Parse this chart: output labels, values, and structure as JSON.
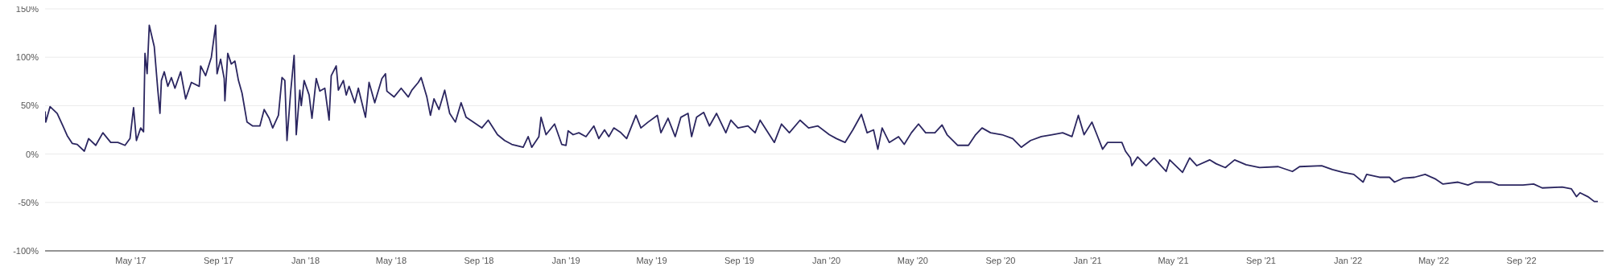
{
  "chart_data": {
    "type": "line",
    "color": "#2b2660",
    "grid": "y",
    "marker": "none",
    "line_style": "solid",
    "xlim": [
      "2017-01-01",
      "2022-12-25"
    ],
    "xticks": [
      {
        "value": "2017-05-01",
        "label": "May '17"
      },
      {
        "value": "2017-09-01",
        "label": "Sep '17"
      },
      {
        "value": "2018-01-01",
        "label": "Jan '18"
      },
      {
        "value": "2018-05-01",
        "label": "May '18"
      },
      {
        "value": "2018-09-01",
        "label": "Sep '18"
      },
      {
        "value": "2019-01-01",
        "label": "Jan '19"
      },
      {
        "value": "2019-05-01",
        "label": "May '19"
      },
      {
        "value": "2019-09-01",
        "label": "Sep '19"
      },
      {
        "value": "2020-01-01",
        "label": "Jan '20"
      },
      {
        "value": "2020-05-01",
        "label": "May '20"
      },
      {
        "value": "2020-09-01",
        "label": "Sep '20"
      },
      {
        "value": "2021-01-01",
        "label": "Jan '21"
      },
      {
        "value": "2021-05-01",
        "label": "May '21"
      },
      {
        "value": "2021-09-01",
        "label": "Sep '21"
      },
      {
        "value": "2022-01-01",
        "label": "Jan '22"
      },
      {
        "value": "2022-05-01",
        "label": "May '22"
      },
      {
        "value": "2022-09-01",
        "label": "Sep '22"
      }
    ],
    "ylim": [
      -100,
      150
    ],
    "yticks": [
      {
        "value": -100,
        "label": "-100%"
      },
      {
        "value": -50,
        "label": "-50%"
      },
      {
        "value": 0,
        "label": "0%"
      },
      {
        "value": 50,
        "label": "50%"
      },
      {
        "value": 100,
        "label": "100%"
      },
      {
        "value": 150,
        "label": "150%"
      }
    ],
    "x": [
      "2017-01-01",
      "2017-01-02",
      "2017-01-08",
      "2017-01-18",
      "2017-01-26",
      "2017-02-01",
      "2017-02-08",
      "2017-02-15",
      "2017-02-25",
      "2017-03-03",
      "2017-03-13",
      "2017-03-23",
      "2017-04-03",
      "2017-04-13",
      "2017-04-23",
      "2017-04-30",
      "2017-05-05",
      "2017-05-09",
      "2017-05-15",
      "2017-05-19",
      "2017-05-21",
      "2017-05-24",
      "2017-05-27",
      "2017-06-03",
      "2017-06-08",
      "2017-06-11",
      "2017-06-13",
      "2017-06-17",
      "2017-06-22",
      "2017-06-27",
      "2017-07-02",
      "2017-07-10",
      "2017-07-17",
      "2017-07-25",
      "2017-08-05",
      "2017-08-07",
      "2017-08-14",
      "2017-08-22",
      "2017-08-28",
      "2017-08-30",
      "2017-09-04",
      "2017-09-09",
      "2017-09-10",
      "2017-09-14",
      "2017-09-19",
      "2017-09-24",
      "2017-09-29",
      "2017-10-04",
      "2017-10-11",
      "2017-10-19",
      "2017-10-29",
      "2017-11-04",
      "2017-11-11",
      "2017-11-16",
      "2017-11-24",
      "2017-11-29",
      "2017-12-03",
      "2017-12-06",
      "2017-12-11",
      "2017-12-16",
      "2017-12-19",
      "2017-12-24",
      "2017-12-26",
      "2017-12-30",
      "2018-01-06",
      "2018-01-10",
      "2018-01-16",
      "2018-01-21",
      "2018-01-28",
      "2018-02-03",
      "2018-02-06",
      "2018-02-13",
      "2018-02-16",
      "2018-02-23",
      "2018-02-27",
      "2018-03-03",
      "2018-03-11",
      "2018-03-16",
      "2018-03-26",
      "2018-03-31",
      "2018-04-08",
      "2018-04-18",
      "2018-04-23",
      "2018-04-25",
      "2018-05-05",
      "2018-05-15",
      "2018-05-25",
      "2018-05-30",
      "2018-06-08",
      "2018-06-12",
      "2018-06-20",
      "2018-06-25",
      "2018-06-30",
      "2018-07-07",
      "2018-07-15",
      "2018-07-22",
      "2018-07-30",
      "2018-08-07",
      "2018-08-14",
      "2018-08-24",
      "2018-09-05",
      "2018-09-14",
      "2018-09-27",
      "2018-10-07",
      "2018-10-17",
      "2018-11-02",
      "2018-11-09",
      "2018-11-14",
      "2018-11-24",
      "2018-11-27",
      "2018-12-04",
      "2018-12-16",
      "2018-12-26",
      "2019-01-01",
      "2019-01-04",
      "2019-01-11",
      "2019-01-19",
      "2019-01-29",
      "2019-02-09",
      "2019-02-16",
      "2019-02-24",
      "2019-03-02",
      "2019-03-09",
      "2019-03-19",
      "2019-03-27",
      "2019-04-09",
      "2019-04-16",
      "2019-04-26",
      "2019-05-09",
      "2019-05-14",
      "2019-05-24",
      "2019-06-03",
      "2019-06-11",
      "2019-06-21",
      "2019-06-26",
      "2019-07-03",
      "2019-07-13",
      "2019-07-21",
      "2019-07-31",
      "2019-08-13",
      "2019-08-20",
      "2019-08-30",
      "2019-09-13",
      "2019-09-23",
      "2019-09-30",
      "2019-10-13",
      "2019-10-20",
      "2019-10-30",
      "2019-11-10",
      "2019-11-25",
      "2019-12-07",
      "2019-12-20",
      "2020-01-05",
      "2020-01-15",
      "2020-01-27",
      "2020-02-07",
      "2020-02-19",
      "2020-02-27",
      "2020-03-07",
      "2020-03-13",
      "2020-03-19",
      "2020-03-29",
      "2020-04-11",
      "2020-04-19",
      "2020-04-29",
      "2020-05-09",
      "2020-05-19",
      "2020-06-01",
      "2020-06-11",
      "2020-06-18",
      "2020-07-03",
      "2020-07-18",
      "2020-07-28",
      "2020-08-06",
      "2020-08-18",
      "2020-09-03",
      "2020-09-18",
      "2020-09-30",
      "2020-10-13",
      "2020-10-28",
      "2020-11-12",
      "2020-11-27",
      "2020-12-10",
      "2020-12-19",
      "2020-12-27",
      "2021-01-07",
      "2021-01-14",
      "2021-01-22",
      "2021-01-29",
      "2021-02-09",
      "2021-02-18",
      "2021-02-23",
      "2021-03-02",
      "2021-03-04",
      "2021-03-12",
      "2021-03-24",
      "2021-04-04",
      "2021-04-21",
      "2021-04-26",
      "2021-05-14",
      "2021-05-24",
      "2021-06-03",
      "2021-06-21",
      "2021-06-30",
      "2021-07-13",
      "2021-07-26",
      "2021-08-11",
      "2021-08-30",
      "2021-09-25",
      "2021-10-15",
      "2021-10-25",
      "2021-11-25",
      "2021-12-10",
      "2021-12-25",
      "2022-01-09",
      "2022-01-22",
      "2022-01-27",
      "2022-02-14",
      "2022-02-28",
      "2022-03-07",
      "2022-03-19",
      "2022-04-04",
      "2022-04-19",
      "2022-05-04",
      "2022-05-14",
      "2022-06-04",
      "2022-06-18",
      "2022-06-28",
      "2022-07-21",
      "2022-07-31",
      "2022-09-03",
      "2022-09-18",
      "2022-09-30",
      "2022-10-28",
      "2022-11-10",
      "2022-11-17",
      "2022-11-22",
      "2022-12-03",
      "2022-12-12",
      "2022-12-17"
    ],
    "values": [
      44,
      33,
      49,
      42,
      29,
      19,
      11,
      10,
      3,
      16,
      9,
      22,
      12,
      12,
      9,
      16,
      48,
      14,
      27,
      23,
      104,
      83,
      133,
      111,
      66,
      42,
      76,
      85,
      70,
      79,
      68,
      85,
      57,
      74,
      70,
      91,
      81,
      100,
      133,
      83,
      98,
      78,
      55,
      104,
      93,
      96,
      76,
      63,
      33,
      29,
      29,
      46,
      37,
      27,
      40,
      79,
      76,
      14,
      63,
      102,
      20,
      66,
      50,
      76,
      61,
      37,
      78,
      65,
      68,
      35,
      81,
      91,
      66,
      76,
      61,
      70,
      53,
      68,
      38,
      74,
      53,
      78,
      83,
      65,
      59,
      68,
      59,
      66,
      74,
      79,
      59,
      40,
      57,
      46,
      66,
      42,
      33,
      53,
      38,
      33,
      27,
      35,
      20,
      14,
      10,
      7,
      18,
      7,
      18,
      38,
      20,
      31,
      10,
      9,
      24,
      20,
      22,
      18,
      29,
      16,
      25,
      18,
      27,
      22,
      16,
      40,
      27,
      33,
      40,
      22,
      37,
      18,
      38,
      42,
      18,
      38,
      43,
      29,
      42,
      22,
      35,
      27,
      29,
      22,
      35,
      20,
      12,
      31,
      22,
      35,
      27,
      29,
      20,
      16,
      12,
      25,
      41,
      22,
      25,
      5,
      27,
      12,
      18,
      10,
      22,
      31,
      22,
      22,
      30,
      20,
      9,
      9,
      20,
      27,
      22,
      20,
      16,
      7,
      14,
      18,
      20,
      22,
      18,
      40,
      20,
      33,
      20,
      5,
      12,
      12,
      12,
      3,
      -4,
      -12,
      -3,
      -12,
      -4,
      -18,
      -6,
      -19,
      -4,
      -12,
      -6,
      -10,
      -14,
      -6,
      -11,
      -14,
      -13,
      -18,
      -13,
      -12,
      -16,
      -19,
      -21,
      -29,
      -21,
      -24,
      -24,
      -29,
      -25,
      -24,
      -21,
      -26,
      -31,
      -29,
      -32,
      -29,
      -29,
      -32,
      -32,
      -31,
      -35,
      -34,
      -36,
      -44,
      -40,
      -44,
      -49,
      -49
    ]
  }
}
